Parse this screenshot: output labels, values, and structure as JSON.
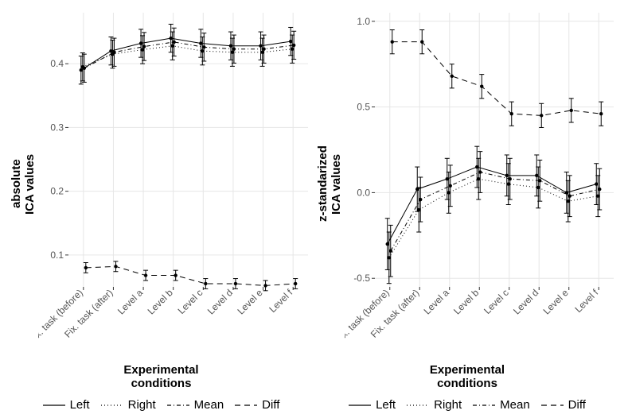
{
  "figure": {
    "background_color": "#ffffff",
    "stroke_color": "#000000",
    "grid_color": "#e6e6e6",
    "axis_text_color": "#555555",
    "font_family": "sans-serif",
    "point_radius": 2.2,
    "line_width": 1.0,
    "errorbar_width": 1.0,
    "errorbar_cap": 3,
    "categories": [
      "Fix. task (before)",
      "Fix. task (after)",
      "Level a",
      "Level b",
      "Level c",
      "Level d",
      "Level e",
      "Level f"
    ],
    "legend_labels": {
      "left": "Left",
      "right": "Right",
      "mean": "Mean",
      "diff": "Diff"
    },
    "dash": {
      "left": "",
      "right": "1 3",
      "mean": "5 3 1 3",
      "diff": "7 5"
    },
    "panels": [
      {
        "id": "absolute",
        "ylabel": "absolute\nICA values",
        "xlabel": "Experimental\nconditions",
        "ylim": [
          0.05,
          0.48
        ],
        "yticks": [
          0.1,
          0.2,
          0.3,
          0.4
        ],
        "series": {
          "left": {
            "y": [
              0.39,
              0.42,
              0.432,
              0.44,
              0.432,
              0.428,
              0.428,
              0.435
            ],
            "err": [
              0.022,
              0.022,
              0.022,
              0.022,
              0.022,
              0.022,
              0.022,
              0.022
            ]
          },
          "right": {
            "y": [
              0.395,
              0.415,
              0.422,
              0.428,
              0.42,
              0.418,
              0.418,
              0.423
            ],
            "err": [
              0.022,
              0.022,
              0.022,
              0.022,
              0.022,
              0.022,
              0.022,
              0.022
            ]
          },
          "mean": {
            "y": [
              0.393,
              0.418,
              0.427,
              0.434,
              0.426,
              0.423,
              0.423,
              0.429
            ],
            "err": [
              0.022,
              0.022,
              0.022,
              0.022,
              0.022,
              0.022,
              0.022,
              0.022
            ]
          },
          "diff": {
            "y": [
              0.08,
              0.082,
              0.068,
              0.068,
              0.055,
              0.055,
              0.052,
              0.055
            ],
            "err": [
              0.008,
              0.008,
              0.008,
              0.008,
              0.008,
              0.008,
              0.008,
              0.008
            ]
          }
        }
      },
      {
        "id": "zstd",
        "ylabel": "z-standarized\nICA values",
        "xlabel": "Experimental\nconditions",
        "ylim": [
          -0.55,
          1.05
        ],
        "yticks": [
          -0.5,
          0.0,
          0.5,
          1.0
        ],
        "series": {
          "left": {
            "y": [
              -0.3,
              0.02,
              0.08,
              0.15,
              0.1,
              0.1,
              0.0,
              0.05
            ],
            "err": [
              0.15,
              0.13,
              0.12,
              0.12,
              0.12,
              0.12,
              0.12,
              0.12
            ]
          },
          "right": {
            "y": [
              -0.38,
              -0.1,
              0.0,
              0.08,
              0.05,
              0.03,
              -0.05,
              -0.02
            ],
            "err": [
              0.15,
              0.13,
              0.12,
              0.12,
              0.12,
              0.12,
              0.12,
              0.12
            ]
          },
          "mean": {
            "y": [
              -0.34,
              -0.04,
              0.04,
              0.12,
              0.08,
              0.07,
              -0.02,
              0.02
            ],
            "err": [
              0.15,
              0.13,
              0.12,
              0.12,
              0.12,
              0.12,
              0.12,
              0.12
            ]
          },
          "diff": {
            "y": [
              0.88,
              0.88,
              0.68,
              0.62,
              0.46,
              0.45,
              0.48,
              0.46
            ],
            "err": [
              0.07,
              0.07,
              0.07,
              0.07,
              0.07,
              0.07,
              0.07,
              0.07
            ]
          }
        }
      }
    ]
  }
}
